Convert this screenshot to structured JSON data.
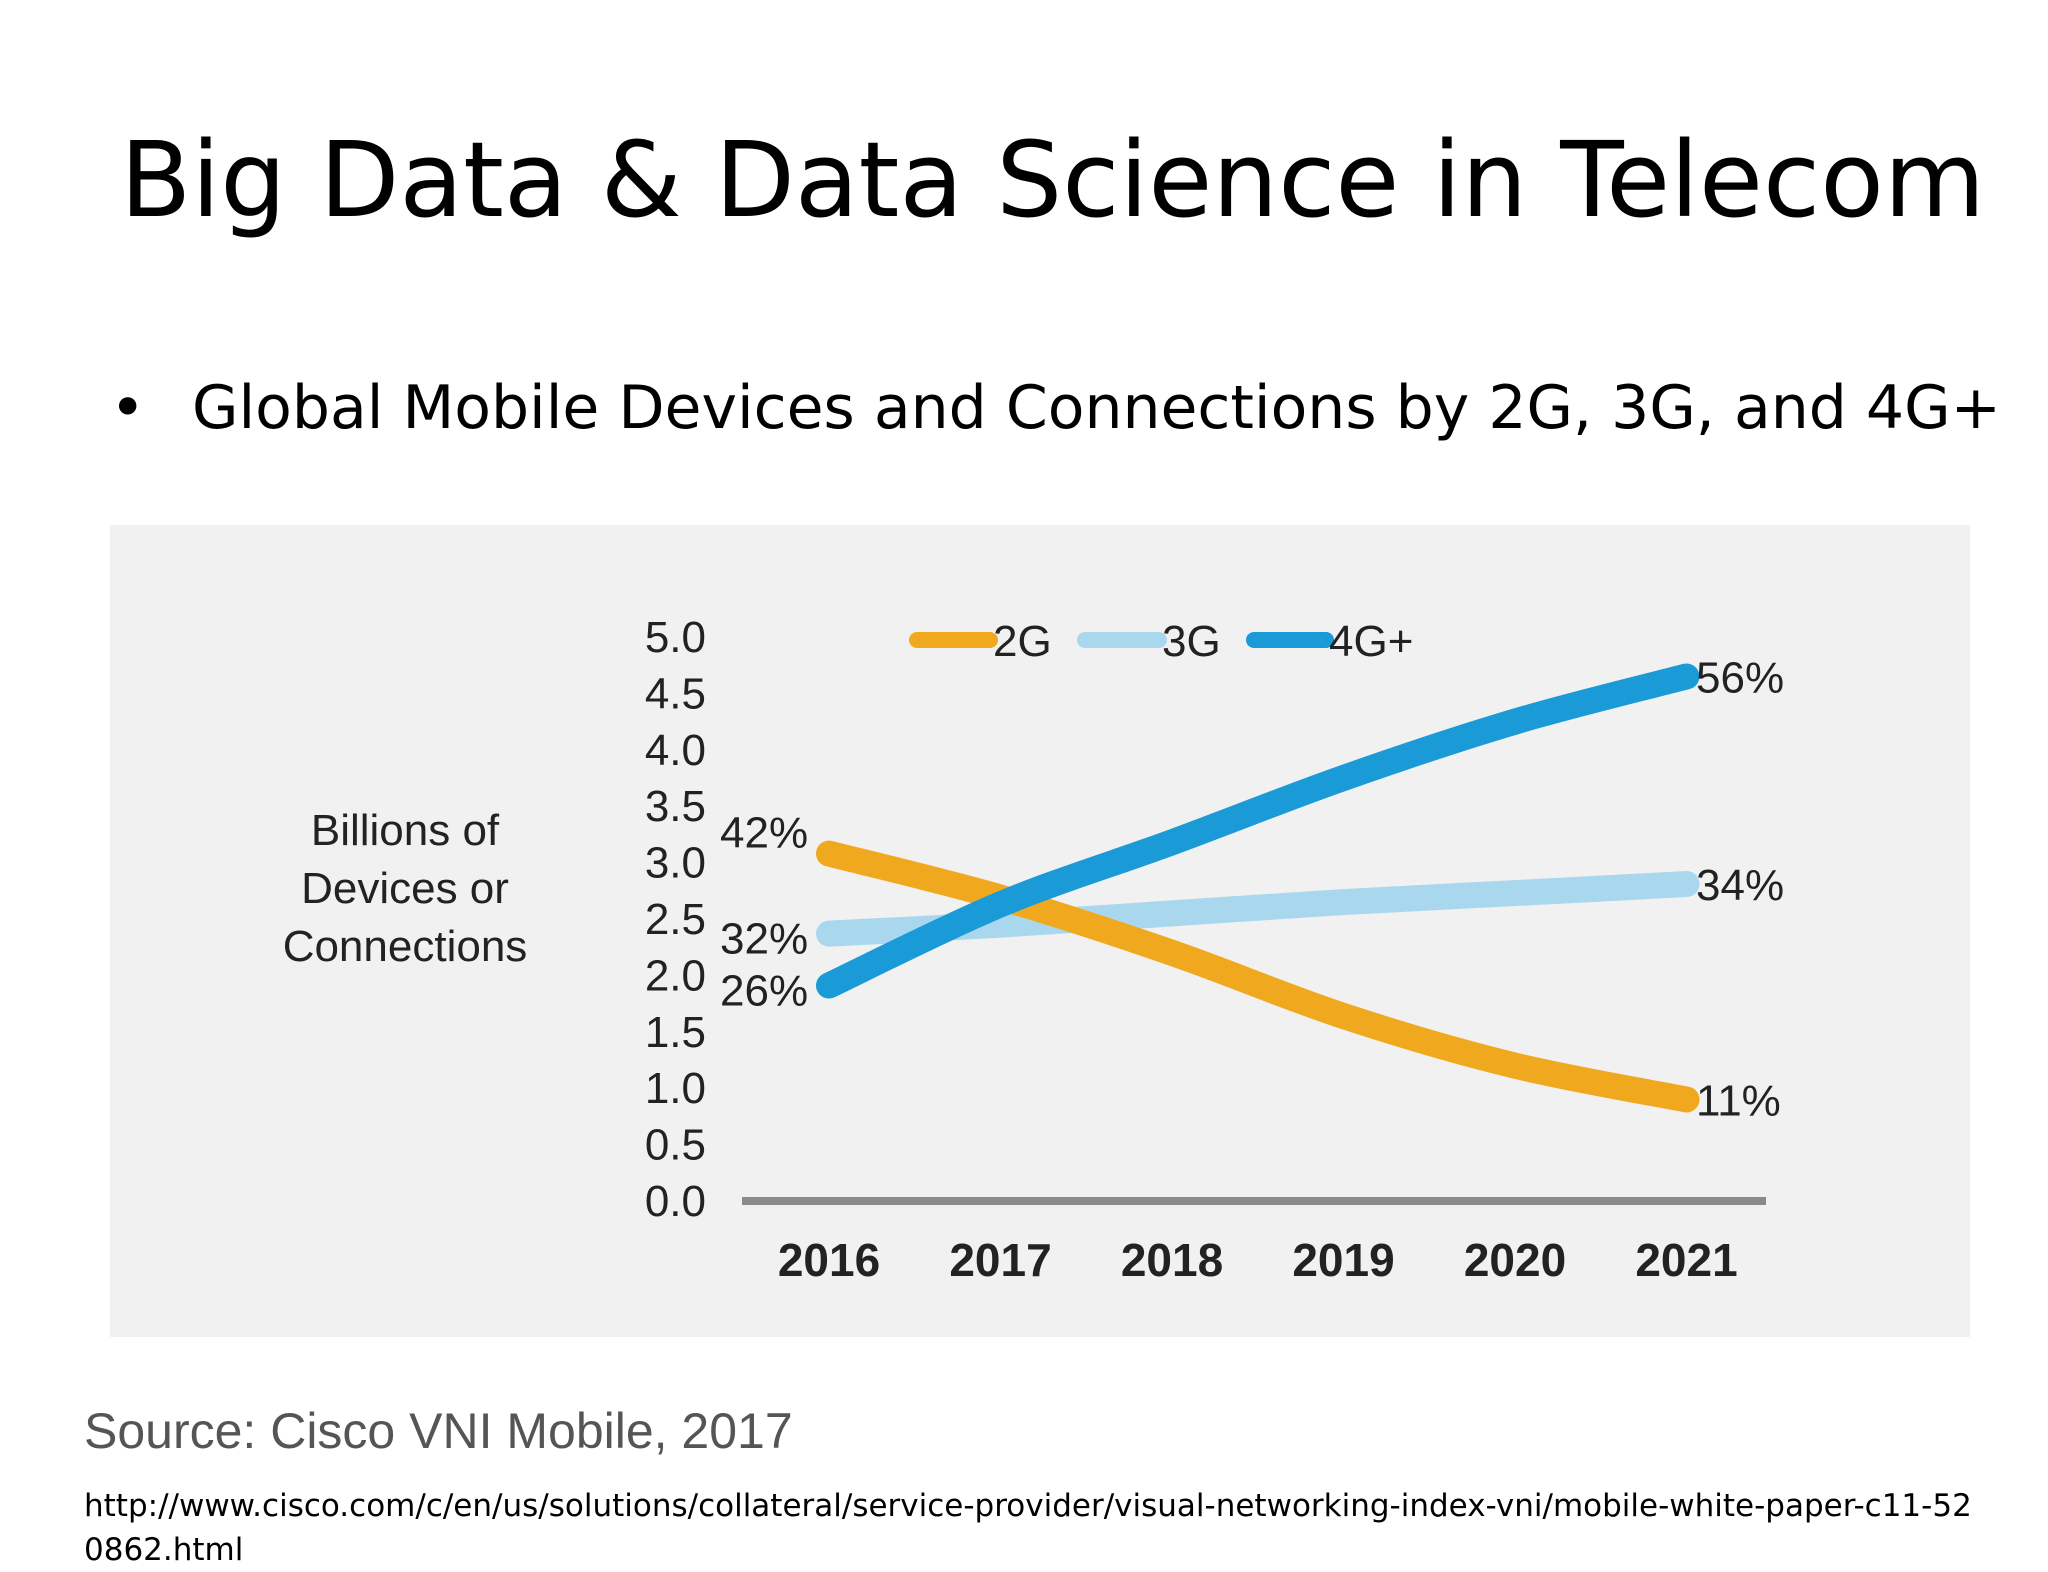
{
  "title": "Big Data & Data Science in Telecom",
  "bullet": "Global Mobile Devices and Connections by 2G, 3G, and 4G+",
  "source": "Source: Cisco VNI Mobile, 2017",
  "url": "http://www.cisco.com/c/en/us/solutions/collateral/service-provider/visual-networking-index-vni/mobile-white-paper-c11-520862.html",
  "chart_data": {
    "type": "line",
    "ylabel": [
      "Billions of",
      "Devices or",
      "Connections"
    ],
    "ylim": [
      0,
      5
    ],
    "yticks": [
      "0.0",
      "0.5",
      "1.0",
      "1.5",
      "2.0",
      "2.5",
      "3.0",
      "3.5",
      "4.0",
      "4.5",
      "5.0"
    ],
    "x": [
      "2016",
      "2017",
      "2018",
      "2019",
      "2020",
      "2021"
    ],
    "grid": false,
    "legend_placement": "top",
    "series": [
      {
        "name": "2G",
        "color": "#f0a81e",
        "values": [
          3.08,
          2.69,
          2.2,
          1.64,
          1.2,
          0.9
        ],
        "start_label": "42%",
        "end_label": "11%"
      },
      {
        "name": "3G",
        "color": "#a9d8ee",
        "values": [
          2.37,
          2.45,
          2.55,
          2.65,
          2.73,
          2.81
        ],
        "start_label": "32%",
        "end_label": "34%"
      },
      {
        "name": "4G+",
        "color": "#1a9ad6",
        "values": [
          1.91,
          2.63,
          3.18,
          3.75,
          4.25,
          4.65
        ],
        "start_label": "26%",
        "end_label": "56%"
      }
    ],
    "background": "#f1f1f1",
    "axis_color": "#8a8a8a"
  }
}
